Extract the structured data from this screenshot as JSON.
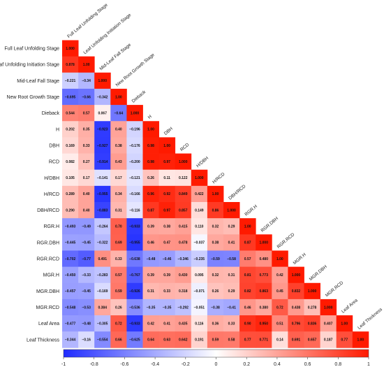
{
  "chart_data": {
    "type": "heatmap",
    "subtype": "lower-triangular correlation matrix",
    "variables": [
      "Full Leaf Unfolding Stage",
      "Leaf Unfolding Initiation Stage",
      "Mid-Leaf Fall Stage",
      "New Root Growth Stage",
      "Dieback",
      "H",
      "DBH",
      "RCD",
      "H/DBH",
      "H/RCD",
      "DBH/RCD",
      "RGR.H",
      "RGR.DBH",
      "RGR.RCD",
      "MGR.H",
      "MGR.DBH",
      "MGR.RCD",
      "Leaf Area",
      "Leaf Thickness"
    ],
    "labels": [
      [
        "1.000"
      ],
      [
        "0.878",
        "1.00"
      ],
      [
        "−0.221",
        "−0.34",
        "1.000"
      ],
      [
        "−0.695",
        "−0.66",
        "−0.342",
        "1.00"
      ],
      [
        "0.544",
        "0.57",
        "0.067",
        "−0.64",
        "1.000"
      ],
      [
        "0.202",
        "0.35",
        "−0.923",
        "0.40",
        "−0.196",
        "1.00"
      ],
      [
        "0.169",
        "0.33",
        "−0.927",
        "0.38",
        "−0.176",
        "0.98",
        "1.00"
      ],
      [
        "0.082",
        "0.27",
        "−0.914",
        "0.43",
        "−0.200",
        "0.98",
        "0.97",
        "1.000"
      ],
      [
        "0.105",
        "0.17",
        "−0.141",
        "0.17",
        "−0.121",
        "0.26",
        "0.11",
        "0.122",
        "1.000"
      ],
      [
        "0.289",
        "0.40",
        "−0.955",
        "0.34",
        "−0.166",
        "0.96",
        "0.92",
        "0.849",
        "0.422",
        "1.00"
      ],
      [
        "0.290",
        "0.40",
        "−0.883",
        "0.31",
        "−0.116",
        "0.87",
        "0.97",
        "0.857",
        "0.149",
        "0.86",
        "1.000"
      ],
      [
        "−0.493",
        "−0.49",
        "−0.264",
        "0.70",
        "−0.933",
        "0.39",
        "0.38",
        "0.415",
        "0.110",
        "0.32",
        "0.29",
        "1.00"
      ],
      [
        "−0.445",
        "−0.45",
        "−0.322",
        "0.69",
        "−0.955",
        "0.46",
        "0.47",
        "0.478",
        "−0.037",
        "0.38",
        "0.41",
        "0.87",
        "1.000"
      ],
      [
        "−0.702",
        "−0.77",
        "0.491",
        "0.33",
        "−0.638",
        "−0.48",
        "−0.46",
        "−0.346",
        "−0.235",
        "−0.59",
        "−0.58",
        "0.57",
        "0.480",
        "1.00"
      ],
      [
        "−0.450",
        "−0.33",
        "−0.283",
        "0.57",
        "−0.767",
        "0.39",
        "0.39",
        "0.430",
        "0.095",
        "0.32",
        "0.31",
        "0.81",
        "0.773",
        "0.42",
        "1.000"
      ],
      [
        "−0.457",
        "−0.45",
        "−0.169",
        "0.59",
        "−0.926",
        "0.31",
        "0.33",
        "0.318",
        "−0.071",
        "0.26",
        "0.29",
        "0.82",
        "0.863",
        "0.45",
        "0.832",
        "1.000"
      ],
      [
        "−0.548",
        "−0.53",
        "0.384",
        "0.26",
        "−0.536",
        "−0.35",
        "−0.35",
        "−0.292",
        "−0.051",
        "−0.38",
        "−0.41",
        "0.46",
        "0.380",
        "0.72",
        "0.438",
        "0.278",
        "1.000"
      ],
      [
        "−0.477",
        "−0.48",
        "−0.305",
        "0.72",
        "−0.933",
        "0.42",
        "0.41",
        "0.435",
        "0.116",
        "0.36",
        "0.33",
        "0.90",
        "0.950",
        "0.51",
        "0.796",
        "0.836",
        "0.407",
        "1.00"
      ],
      [
        "−0.344",
        "−0.16",
        "−0.554",
        "0.66",
        "−0.625",
        "0.64",
        "0.63",
        "0.642",
        "0.191",
        "0.59",
        "0.58",
        "0.77",
        "0.771",
        "0.14",
        "0.691",
        "0.657",
        "0.187",
        "0.77",
        "1.00"
      ]
    ],
    "colorbar": {
      "range": [
        -1,
        1
      ],
      "ticks": [
        "-1",
        "-0.8",
        "-0.6",
        "-0.4",
        "-0.2",
        "0",
        "0.2",
        "0.4",
        "0.6",
        "0.8",
        "1"
      ],
      "colors": {
        "negative": "#1f2bff",
        "zero": "#ffffff",
        "positive": "#ff1a00"
      }
    }
  }
}
